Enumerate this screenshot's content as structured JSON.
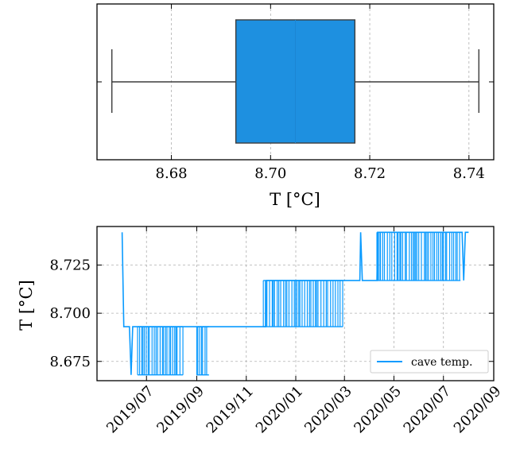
{
  "chart_data": [
    {
      "type": "box",
      "xlabel": "T [°C]",
      "xlim": [
        8.665,
        8.745
      ],
      "xticks": [
        8.68,
        8.7,
        8.72,
        8.74
      ],
      "xtick_labels": [
        "8.68",
        "8.70",
        "8.72",
        "8.74"
      ],
      "box": {
        "whisker_low": 8.668,
        "q1": 8.693,
        "median": 8.705,
        "q3": 8.717,
        "whisker_high": 8.742
      },
      "grid": true,
      "colors": {
        "box": "#1e90e0",
        "box_edge": "#3d3d3d"
      }
    },
    {
      "type": "line",
      "ylabel": "T [°C]",
      "xlim": [
        "2019-05-01",
        "2020-09-01"
      ],
      "ylim": [
        8.665,
        8.745
      ],
      "xticks": [
        "2019-07-01",
        "2019-09-01",
        "2019-11-01",
        "2020-01-01",
        "2020-03-01",
        "2020-05-01",
        "2020-07-01",
        "2020-09-01"
      ],
      "xtick_labels": [
        "2019/07",
        "2019/09",
        "2019/11",
        "2020/01",
        "2020/03",
        "2020/05",
        "2020/07",
        "2020/09"
      ],
      "yticks": [
        8.675,
        8.7,
        8.725
      ],
      "ytick_labels": [
        "8.675",
        "8.700",
        "8.725"
      ],
      "grid": true,
      "legend": {
        "position": "lower-right",
        "entries": [
          "cave temp."
        ]
      },
      "series": [
        {
          "name": "cave temp.",
          "color": "#0a9bff",
          "points": [
            {
              "x": "2019-06-01",
              "y": 8.742
            },
            {
              "x": "2019-06-03",
              "y": 8.693
            },
            {
              "x": "2019-06-10",
              "y": 8.693
            },
            {
              "x": "2019-06-12",
              "y": 8.668
            },
            {
              "x": "2019-06-14",
              "y": 8.693
            },
            {
              "x": "2019-11-25",
              "y": 8.693
            },
            {
              "x": "2019-11-26",
              "y": 8.717
            },
            {
              "x": "2020-03-20",
              "y": 8.717
            },
            {
              "x": "2020-03-21",
              "y": 8.742
            },
            {
              "x": "2020-03-23",
              "y": 8.717
            },
            {
              "x": "2020-04-10",
              "y": 8.717
            },
            {
              "x": "2020-04-11",
              "y": 8.742
            },
            {
              "x": "2020-07-24",
              "y": 8.742
            },
            {
              "x": "2020-07-26",
              "y": 8.717
            },
            {
              "x": "2020-07-28",
              "y": 8.742
            },
            {
              "x": "2020-08-01",
              "y": 8.742
            }
          ],
          "flicker_bands": [
            {
              "start": "2019-06-20",
              "end": "2019-08-15",
              "low": 8.668,
              "high": 8.693
            },
            {
              "start": "2019-09-01",
              "end": "2019-09-16",
              "low": 8.668,
              "high": 8.693
            },
            {
              "start": "2019-11-22",
              "end": "2020-02-28",
              "low": 8.693,
              "high": 8.717
            },
            {
              "start": "2020-04-10",
              "end": "2020-07-22",
              "low": 8.717,
              "high": 8.742
            }
          ]
        }
      ]
    }
  ]
}
